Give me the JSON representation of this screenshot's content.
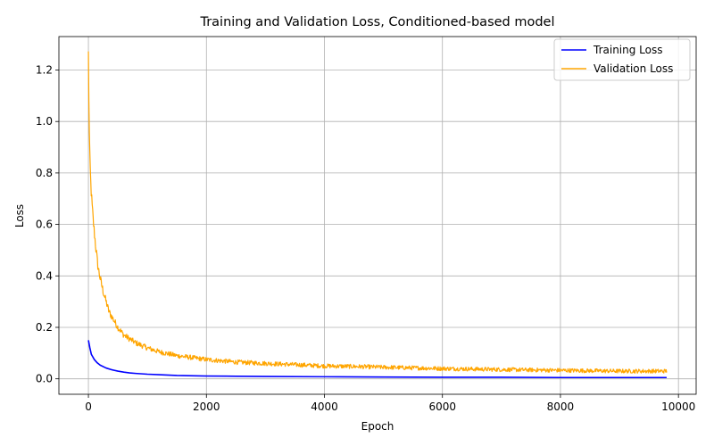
{
  "chart_data": {
    "type": "line",
    "title": "Training and Validation Loss, Conditioned-based model",
    "xlabel": "Epoch",
    "ylabel": "Loss",
    "xlim": [
      -500,
      10300
    ],
    "ylim": [
      -0.06,
      1.33
    ],
    "xticks": [
      0,
      2000,
      4000,
      6000,
      8000,
      10000
    ],
    "yticks": [
      0.0,
      0.2,
      0.4,
      0.6,
      0.8,
      1.0,
      1.2
    ],
    "xtick_labels": [
      "0",
      "2000",
      "4000",
      "6000",
      "8000",
      "10000"
    ],
    "ytick_labels": [
      "0.0",
      "0.2",
      "0.4",
      "0.6",
      "0.8",
      "1.0",
      "1.2"
    ],
    "grid": true,
    "legend_position": "top-right",
    "series": [
      {
        "name": "Training Loss",
        "color": "#0000ff",
        "x": [
          0,
          25,
          50,
          100,
          150,
          200,
          300,
          400,
          500,
          600,
          700,
          800,
          1000,
          1200,
          1500,
          2000,
          2500,
          3000,
          4000,
          5000,
          6000,
          7000,
          8000,
          9000,
          9800
        ],
        "y": [
          0.15,
          0.12,
          0.095,
          0.075,
          0.062,
          0.053,
          0.042,
          0.035,
          0.03,
          0.026,
          0.023,
          0.021,
          0.018,
          0.016,
          0.013,
          0.011,
          0.01,
          0.009,
          0.008,
          0.007,
          0.006,
          0.006,
          0.005,
          0.005,
          0.005
        ]
      },
      {
        "name": "Validation Loss",
        "color": "#ffa500",
        "x": [
          0,
          10,
          20,
          40,
          60,
          80,
          100,
          130,
          160,
          200,
          250,
          300,
          350,
          400,
          500,
          600,
          700,
          800,
          900,
          1000,
          1200,
          1500,
          2000,
          2500,
          3000,
          3500,
          4000,
          4500,
          5000,
          6000,
          7000,
          8000,
          9000,
          9800
        ],
        "y": [
          1.26,
          1.05,
          0.88,
          0.76,
          0.68,
          0.62,
          0.57,
          0.5,
          0.44,
          0.39,
          0.34,
          0.3,
          0.26,
          0.24,
          0.2,
          0.17,
          0.155,
          0.14,
          0.13,
          0.12,
          0.105,
          0.09,
          0.075,
          0.065,
          0.06,
          0.055,
          0.05,
          0.048,
          0.045,
          0.04,
          0.036,
          0.033,
          0.03,
          0.03
        ],
        "noise": 0.012
      }
    ]
  }
}
